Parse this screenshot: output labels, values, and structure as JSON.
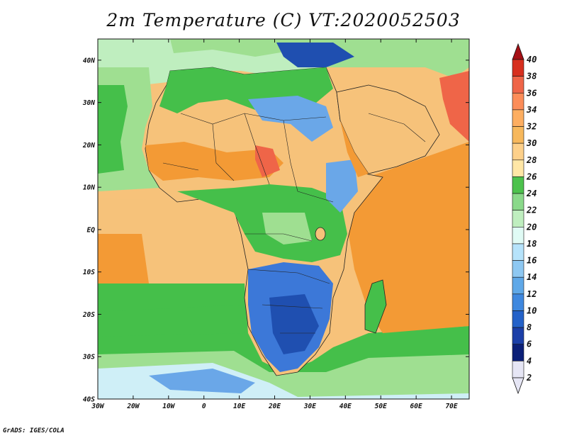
{
  "title": "2m Temperature (C) VT:2020052503",
  "credit": "GrADS: IGES/COLA",
  "map": {
    "projection": "lat-lon",
    "lon_range": [
      -30,
      75
    ],
    "lat_range": [
      -40,
      45
    ],
    "lon_ticks": [
      "30W",
      "20W",
      "10W",
      "0",
      "10E",
      "20E",
      "30E",
      "40E",
      "50E",
      "60E",
      "70E"
    ],
    "lat_ticks": [
      "40N",
      "30N",
      "20N",
      "10N",
      "EQ",
      "10S",
      "20S",
      "30S",
      "40S"
    ],
    "variable": "2m Temperature",
    "units": "C",
    "valid_time": "2020052503"
  },
  "colorbar": {
    "levels": [
      "40",
      "38",
      "36",
      "34",
      "32",
      "30",
      "28",
      "26",
      "24",
      "22",
      "20",
      "18",
      "16",
      "14",
      "12",
      "10",
      "8",
      "6",
      "4",
      "2"
    ],
    "colors": [
      "#a50f15",
      "#d7301f",
      "#ef6548",
      "#fc8d59",
      "#fdae61",
      "#f7b85c",
      "#fdd08a",
      "#ffe7a6",
      "#4dc24d",
      "#8ad98a",
      "#bfeebf",
      "#e0fbf5",
      "#b6e3fb",
      "#8ec8f2",
      "#5fa8e8",
      "#3f88df",
      "#2462c9",
      "#1b3fa8",
      "#0b1f78",
      "#e6e6f5"
    ]
  },
  "legend_keys": {
    "hot": "#f39a35",
    "warm": "#f6c27a",
    "mild": "#fbe39c",
    "green": "#45bf4a",
    "lightgreen": "#9fdf91",
    "cool": "#cfeff7",
    "cold": "#6aa7e8",
    "colder": "#3c78d8",
    "coldest": "#1f4fb0"
  }
}
